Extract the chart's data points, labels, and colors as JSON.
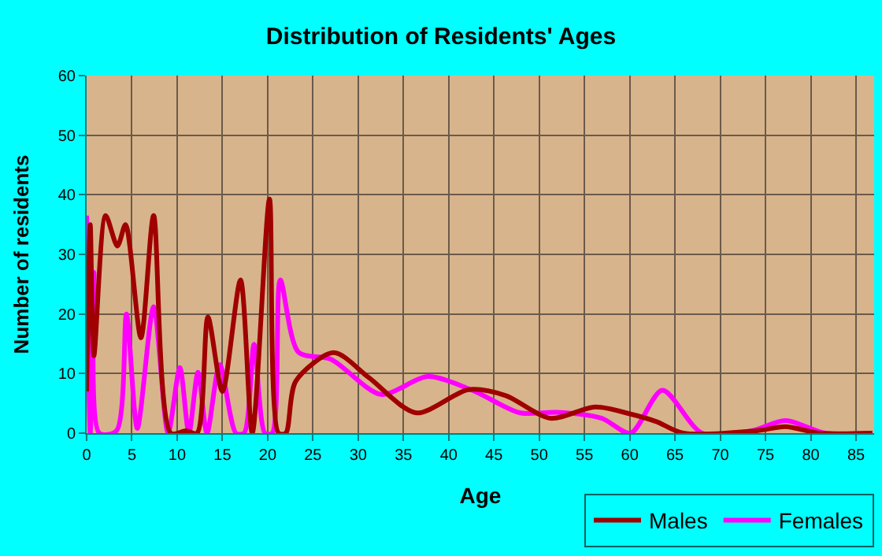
{
  "chart_data": {
    "type": "line",
    "title": "Distribution of Residents' Ages",
    "xlabel": "Age",
    "ylabel": "Number of residents",
    "xlim": [
      0,
      87
    ],
    "xticks": [
      0,
      5,
      10,
      15,
      20,
      25,
      30,
      35,
      40,
      45,
      50,
      55,
      60,
      65,
      70,
      75,
      80,
      85
    ],
    "ylim": [
      0,
      60
    ],
    "yticks": [
      0,
      10,
      20,
      30,
      40,
      50,
      60
    ],
    "grid": true,
    "legend": "bottom right",
    "marker": "none",
    "line_style": "solid",
    "series": [
      {
        "name": "Males",
        "color": "#a00000",
        "x": [
          0,
          0.4,
          0.8,
          2.1,
          3.4,
          4.3,
          6,
          7.4,
          9.3,
          11,
          12.2,
          13.4,
          15,
          17,
          18.3,
          20.2,
          21.2,
          22,
          23.1,
          27.3,
          31.2,
          36.4,
          42.2,
          46.3,
          51.2,
          56.2,
          60.1,
          63,
          65.9,
          74,
          77.2,
          81,
          86.8
        ],
        "values": [
          7,
          35,
          13,
          36.5,
          31.4,
          35,
          16,
          36.5,
          0,
          0.4,
          0,
          19.5,
          7,
          25.7,
          0,
          39.3,
          0,
          0,
          8.7,
          13.5,
          9.3,
          3.4,
          7.3,
          6.3,
          2.5,
          4.4,
          3.2,
          1.9,
          0,
          0.4,
          1.1,
          0,
          0
        ]
      },
      {
        "name": "Females",
        "color": "#ff00ff",
        "x": [
          0,
          0.4,
          0.8,
          1.4,
          3.3,
          4.4,
          5.6,
          7.4,
          9,
          10.3,
          11.3,
          12.3,
          13.3,
          14.7,
          16.5,
          17.4,
          18.5,
          19.7,
          20.5,
          21.4,
          23.4,
          27,
          32.5,
          37.7,
          42.6,
          47.9,
          51.9,
          56.9,
          60.1,
          63.6,
          68,
          73.5,
          77.2,
          81.6,
          86.8
        ],
        "values": [
          36.5,
          0,
          27,
          0,
          0.4,
          20,
          0.8,
          21.2,
          0,
          11,
          0,
          10.2,
          0,
          11.5,
          0,
          0,
          14.9,
          0,
          0,
          25.7,
          13.6,
          12.4,
          6.5,
          9.5,
          7.2,
          3.4,
          3.5,
          2.5,
          0,
          7.2,
          0,
          0.4,
          2.1,
          0,
          0
        ]
      }
    ]
  }
}
